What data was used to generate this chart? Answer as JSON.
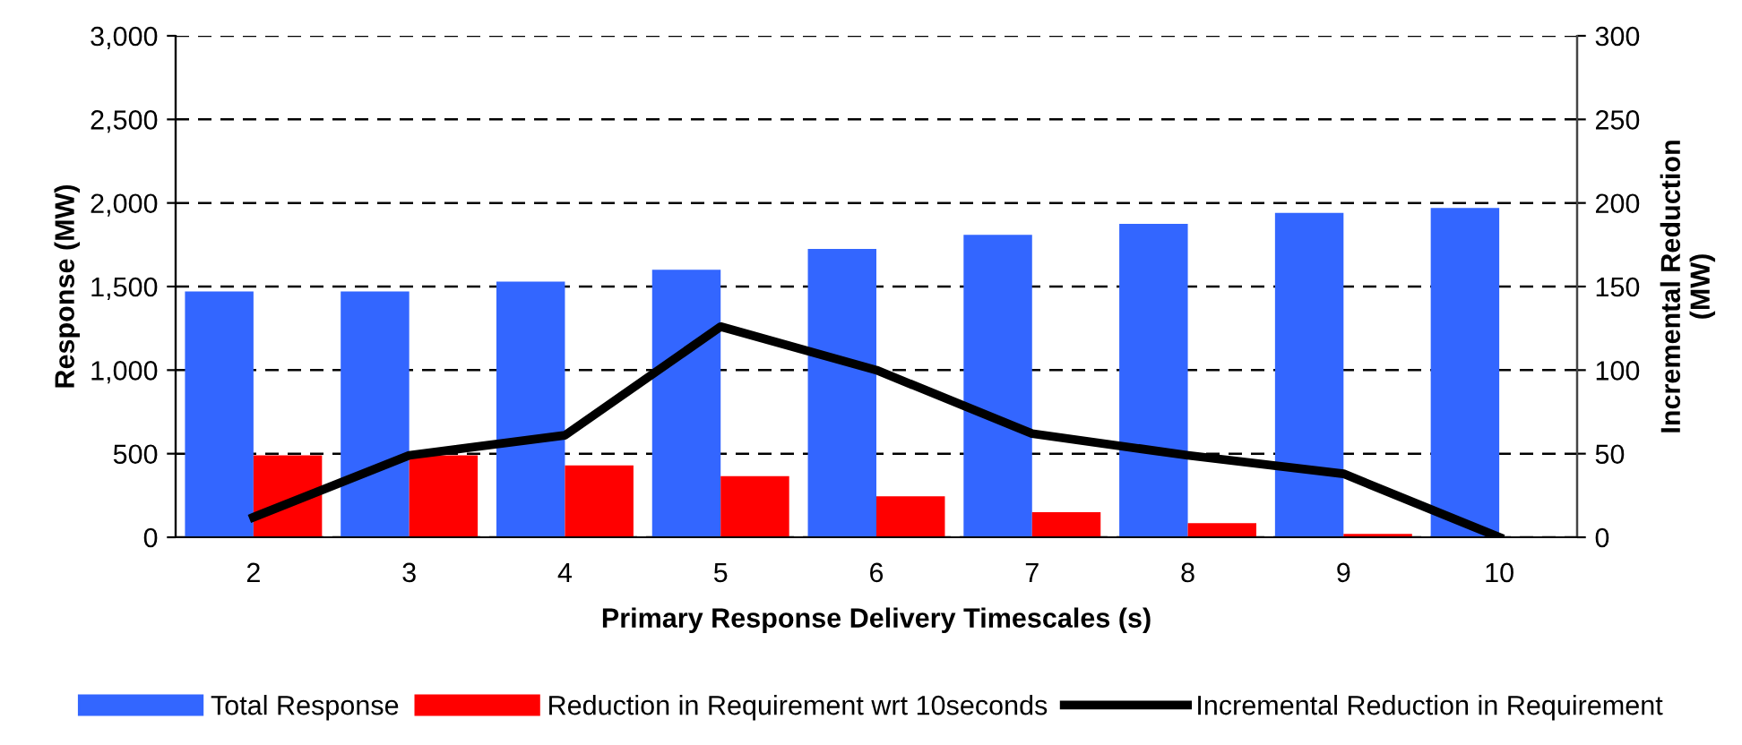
{
  "chart_data": {
    "type": "bar",
    "xlabel": "Primary Response Delivery Timescales (s)",
    "ylabel": "Response (MW)",
    "y2label": "Incremental Reduction\n(MW)",
    "categories": [
      "2",
      "3",
      "4",
      "5",
      "6",
      "7",
      "8",
      "9",
      "10"
    ],
    "series": [
      {
        "name": "Total Response",
        "color": "#3366ff",
        "values": [
          1470,
          1470,
          1530,
          1600,
          1725,
          1810,
          1875,
          1940,
          1970
        ]
      },
      {
        "name": "Reduction in Requirement wrt 10seconds",
        "color": "#ff0000",
        "values": [
          490,
          490,
          430,
          365,
          245,
          150,
          85,
          20,
          0
        ]
      },
      {
        "name": "Incremental Reduction in Requirement",
        "type": "line",
        "axis": "y2",
        "color": "#000000",
        "values": [
          12,
          49,
          61,
          126,
          100,
          62,
          49,
          38,
          0
        ]
      }
    ],
    "ylim": [
      0,
      3000
    ],
    "yticks": [
      {
        "value": 0,
        "label": "0"
      },
      {
        "value": 500,
        "label": "500"
      },
      {
        "value": 1000,
        "label": "1,000"
      },
      {
        "value": 1500,
        "label": "1,500"
      },
      {
        "value": 2000,
        "label": "2,000"
      },
      {
        "value": 2500,
        "label": "2,500"
      },
      {
        "value": 3000,
        "label": "3,000"
      }
    ],
    "y2lim": [
      0,
      300
    ],
    "y2ticks": [
      0,
      50,
      100,
      150,
      200,
      250,
      300
    ],
    "grid": "y",
    "legend": "bottom",
    "marker": "none",
    "line_style": "solid"
  }
}
